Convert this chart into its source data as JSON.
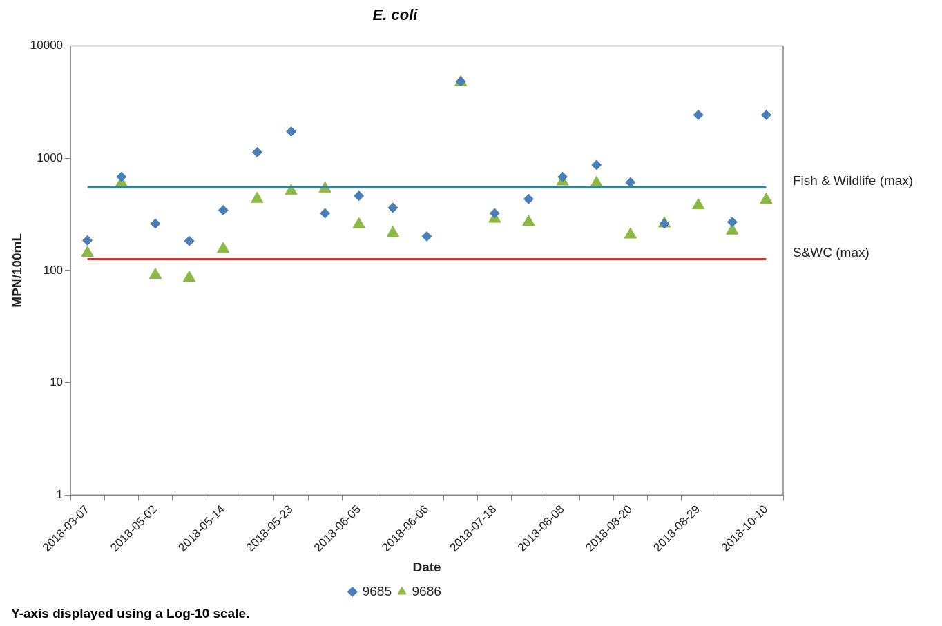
{
  "chart_data": {
    "type": "scatter",
    "title": "E. coli",
    "xlabel": "Date",
    "ylabel": "MPN/100mL",
    "categories": [
      "2018-03-07",
      null,
      "2018-05-02",
      null,
      "2018-05-14",
      null,
      "2018-05-23",
      null,
      "2018-06-05",
      null,
      "2018-06-06",
      null,
      "2018-07-18",
      null,
      "2018-08-08",
      null,
      "2018-08-20",
      null,
      "2018-08-29",
      null,
      "2018-10-10"
    ],
    "series": [
      {
        "name": "9685",
        "color": "#4a7ebb",
        "marker": "diamond",
        "values": [
          185,
          682,
          261,
          183,
          344,
          1130,
          1725,
          323,
          462,
          362,
          201,
          4810,
          323,
          433,
          682,
          871,
          608,
          261,
          2430,
          270,
          2430
        ]
      },
      {
        "name": "9686",
        "color": "#8db843",
        "marker": "triangle",
        "values": [
          143,
          599,
          91,
          86,
          155,
          433,
          509,
          535,
          257,
          215,
          null,
          4730,
          288,
          270,
          619,
          599,
          208,
          261,
          380,
          226,
          425
        ]
      }
    ],
    "log": "y",
    "ylim": [
      1,
      10000
    ],
    "yticks": [
      1,
      10,
      100,
      1000,
      10000
    ],
    "grid": false,
    "legend": "bottom",
    "ref_lines": [
      {
        "axis": "y",
        "value": 550,
        "label": "Fish & Wildlife (max)",
        "color": "#31849b"
      },
      {
        "axis": "y",
        "value": 126,
        "label": "S&WC (max)",
        "color": "#be3a34"
      }
    ],
    "annotations": [
      "Y-axis displayed using a Log-10 scale."
    ]
  }
}
